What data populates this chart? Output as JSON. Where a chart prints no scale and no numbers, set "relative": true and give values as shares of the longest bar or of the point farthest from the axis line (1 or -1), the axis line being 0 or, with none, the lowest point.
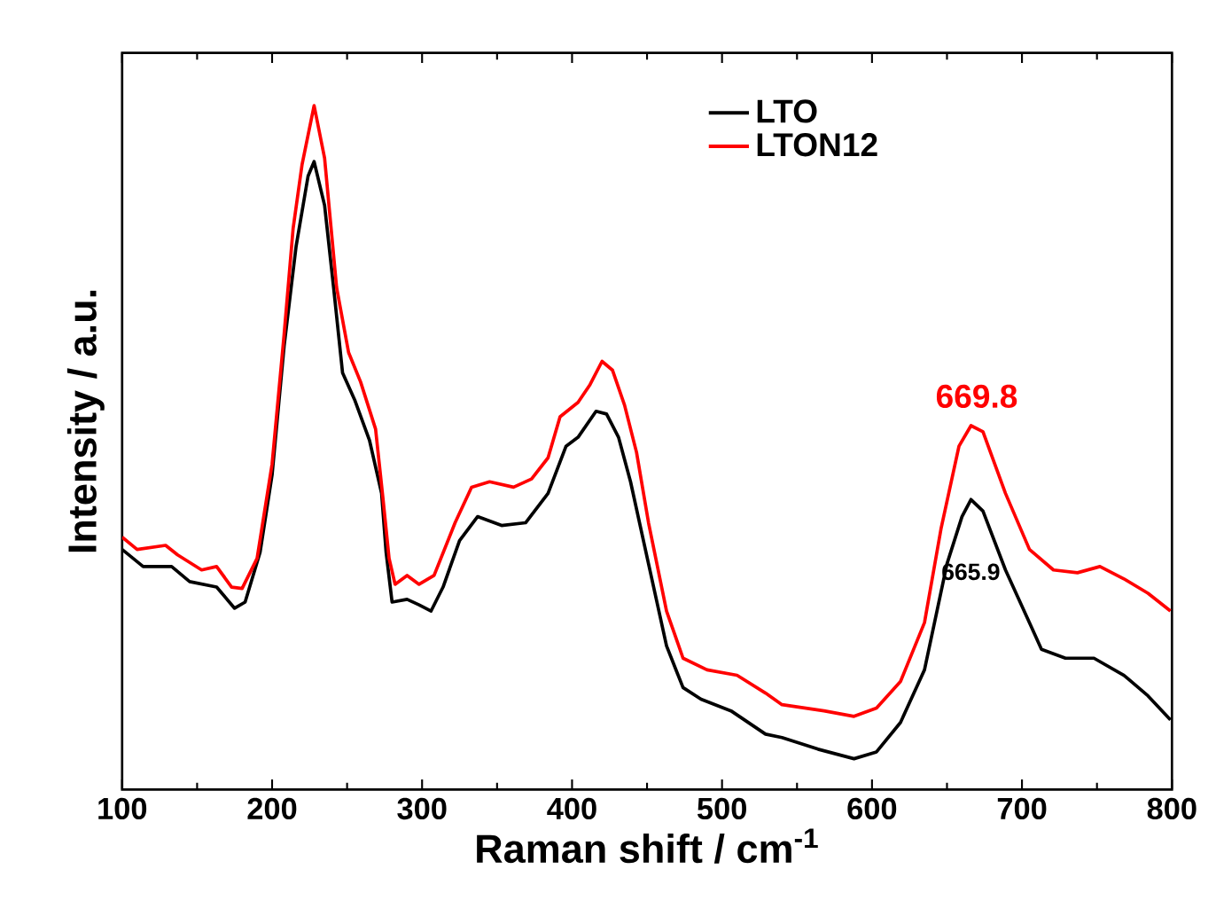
{
  "chart_data": {
    "type": "line",
    "relative": true,
    "xlabel": "Raman shift / cm$^{-1}$",
    "ylabel": "Intensity / a.u.",
    "xlim": [
      100,
      800
    ],
    "xticks": [
      100,
      200,
      300,
      400,
      500,
      600,
      700,
      800
    ],
    "tick_labels": "x",
    "legend": "top right",
    "grid": false,
    "series": [
      {
        "name": "LTO",
        "color": "#000000",
        "x": [
          100,
          114,
          133,
          145,
          163,
          175,
          182,
          192,
          200,
          208,
          216,
          224,
          228,
          235,
          241,
          247,
          255,
          265,
          273,
          276,
          280,
          290,
          298,
          306,
          314,
          325,
          337,
          353,
          369,
          384,
          396,
          404,
          416,
          423,
          431,
          439,
          451,
          463,
          474,
          486,
          506,
          529,
          540,
          564,
          588,
          603,
          619,
          635,
          650,
          660,
          666,
          674,
          689,
          705,
          713,
          729,
          748,
          768,
          784,
          799
        ],
        "values": [
          0.351,
          0.326,
          0.326,
          0.304,
          0.296,
          0.265,
          0.274,
          0.347,
          0.46,
          0.648,
          0.794,
          0.897,
          0.918,
          0.854,
          0.734,
          0.609,
          0.57,
          0.51,
          0.433,
          0.347,
          0.274,
          0.278,
          0.27,
          0.261,
          0.296,
          0.364,
          0.399,
          0.386,
          0.39,
          0.433,
          0.502,
          0.515,
          0.553,
          0.549,
          0.515,
          0.45,
          0.33,
          0.21,
          0.149,
          0.132,
          0.115,
          0.081,
          0.076,
          0.059,
          0.045,
          0.055,
          0.098,
          0.175,
          0.33,
          0.399,
          0.424,
          0.407,
          0.321,
          0.244,
          0.205,
          0.192,
          0.192,
          0.167,
          0.137,
          0.102
        ]
      },
      {
        "name": "LTON12",
        "color": "#ff0000",
        "x": [
          100,
          110,
          129,
          137,
          153,
          163,
          173,
          180,
          190,
          200,
          208,
          214,
          220,
          228,
          235,
          243,
          251,
          259,
          269,
          274,
          278,
          282,
          290,
          298,
          308,
          322,
          333,
          345,
          361,
          373,
          384,
          392,
          404,
          412,
          420,
          427,
          435,
          443,
          451,
          463,
          474,
          490,
          510,
          529,
          540,
          568,
          588,
          603,
          619,
          635,
          646,
          658,
          666,
          674,
          689,
          705,
          721,
          737,
          752,
          768,
          784,
          799
        ],
        "values": [
          0.369,
          0.351,
          0.357,
          0.343,
          0.321,
          0.326,
          0.296,
          0.294,
          0.338,
          0.476,
          0.665,
          0.82,
          0.914,
          1.0,
          0.923,
          0.734,
          0.639,
          0.596,
          0.527,
          0.424,
          0.338,
          0.3,
          0.313,
          0.3,
          0.313,
          0.39,
          0.442,
          0.45,
          0.442,
          0.454,
          0.485,
          0.545,
          0.566,
          0.592,
          0.626,
          0.613,
          0.562,
          0.493,
          0.39,
          0.261,
          0.192,
          0.175,
          0.167,
          0.141,
          0.124,
          0.115,
          0.107,
          0.119,
          0.158,
          0.244,
          0.381,
          0.502,
          0.532,
          0.523,
          0.433,
          0.351,
          0.321,
          0.317,
          0.326,
          0.308,
          0.287,
          0.261
        ]
      }
    ],
    "annotations": [
      {
        "text": "669.8",
        "x": 669.8,
        "y": 0.532
      },
      {
        "text": "665.9",
        "x": 665.9,
        "y": 0.424
      }
    ]
  }
}
